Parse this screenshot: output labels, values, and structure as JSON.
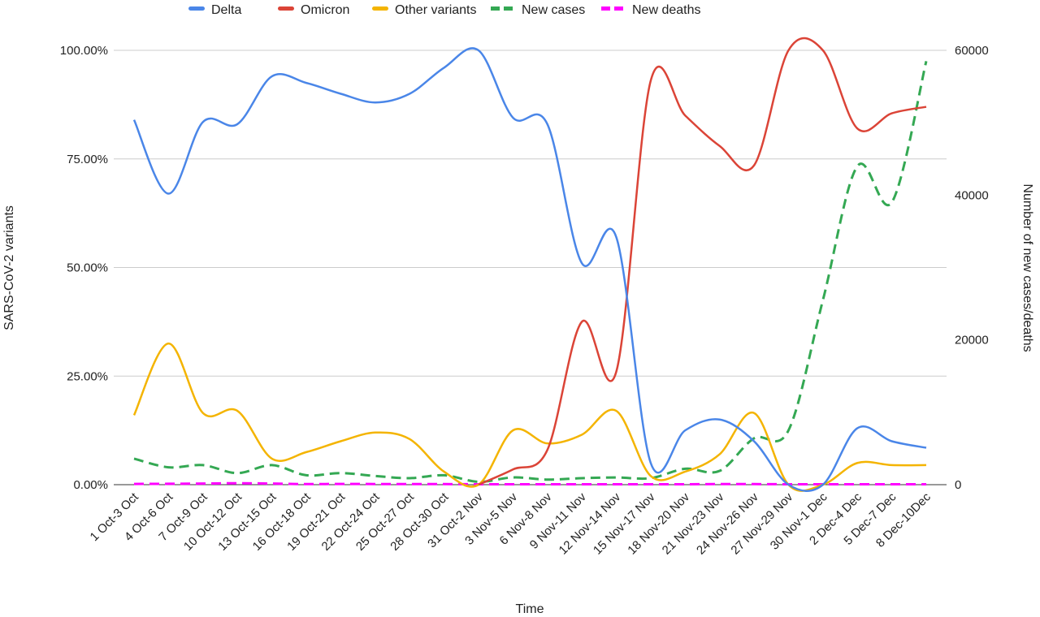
{
  "chart_data": {
    "type": "line",
    "title": "",
    "xlabel": "Time",
    "ylabel_left": "SARS-CoV-2 variants",
    "ylabel_right": "Number of new cases/deaths",
    "legend_position": "top",
    "grid": true,
    "smooth": true,
    "left_axis": {
      "range": [
        0,
        100
      ],
      "ticks": [
        "0.00%",
        "25.00%",
        "50.00%",
        "75.00%",
        "100.00%"
      ],
      "tick_values": [
        0,
        25,
        50,
        75,
        100
      ]
    },
    "right_axis": {
      "range": [
        0,
        60000
      ],
      "ticks": [
        "0",
        "20000",
        "40000",
        "60000"
      ],
      "tick_values": [
        0,
        20000,
        40000,
        60000
      ]
    },
    "categories": [
      "1 Oct-3 Oct",
      "4 Oct-6 Oct",
      "7 Oct-9 Oct",
      "10 Oct-12 Oct",
      "13 Oct-15 Oct",
      "16 Oct-18 Oct",
      "19 Oct-21 Oct",
      "22 Oct-24 Oct",
      "25 Oct-27 Oct",
      "28 Oct-30 Oct",
      "31 Oct-2 Nov",
      "3 Nov-5 Nov",
      "6 Nov-8 Nov",
      "9 Nov-11 Nov",
      "12 Nov-14 Nov",
      "15 Nov-17 Nov",
      "18 Nov-20 Nov",
      "21 Nov-23 Nov",
      "24 Nov-26 Nov",
      "27 Nov-29 Nov",
      "30 Nov-1 Dec",
      "2 Dec-4 Dec",
      "5 Dec-7 Dec",
      "8 Dec-10Dec"
    ],
    "series": [
      {
        "name": "Delta",
        "axis": "left",
        "color": "#4a86e8",
        "dashed": false,
        "values": [
          84,
          67,
          83.5,
          83,
          94,
          92.5,
          90,
          88,
          90,
          96,
          100,
          84.5,
          83,
          51,
          57,
          5,
          12.5,
          15,
          10,
          0,
          0,
          13,
          10,
          8.5
        ]
      },
      {
        "name": "Omicron",
        "axis": "left",
        "color": "#db4437",
        "dashed": false,
        "values": [
          null,
          null,
          null,
          null,
          null,
          null,
          null,
          null,
          null,
          null,
          0,
          3.5,
          8,
          37.5,
          26,
          93,
          85,
          78,
          73.5,
          100,
          100,
          82,
          85.5,
          87
        ]
      },
      {
        "name": "Other variants",
        "axis": "left",
        "color": "#f4b400",
        "dashed": false,
        "values": [
          16,
          32.5,
          16.5,
          17,
          6,
          7.5,
          10,
          12,
          10.5,
          3,
          0,
          12.5,
          9.5,
          11.5,
          17,
          2,
          3,
          7,
          16.5,
          0,
          0,
          5,
          4.5,
          4.5
        ]
      },
      {
        "name": "New cases",
        "axis": "right",
        "color": "#34a853",
        "dashed": true,
        "values": [
          3600,
          2400,
          2700,
          1600,
          2700,
          1300,
          1600,
          1200,
          900,
          1300,
          400,
          1000,
          700,
          900,
          1000,
          900,
          2200,
          1900,
          6400,
          7500,
          25500,
          44000,
          39000,
          58500
        ]
      },
      {
        "name": "New deaths",
        "axis": "right",
        "color": "#ff00ff",
        "dashed": true,
        "values": [
          100,
          120,
          150,
          200,
          150,
          80,
          100,
          90,
          80,
          80,
          60,
          60,
          50,
          60,
          60,
          50,
          60,
          80,
          80,
          60,
          60,
          50,
          50,
          50
        ]
      }
    ]
  }
}
